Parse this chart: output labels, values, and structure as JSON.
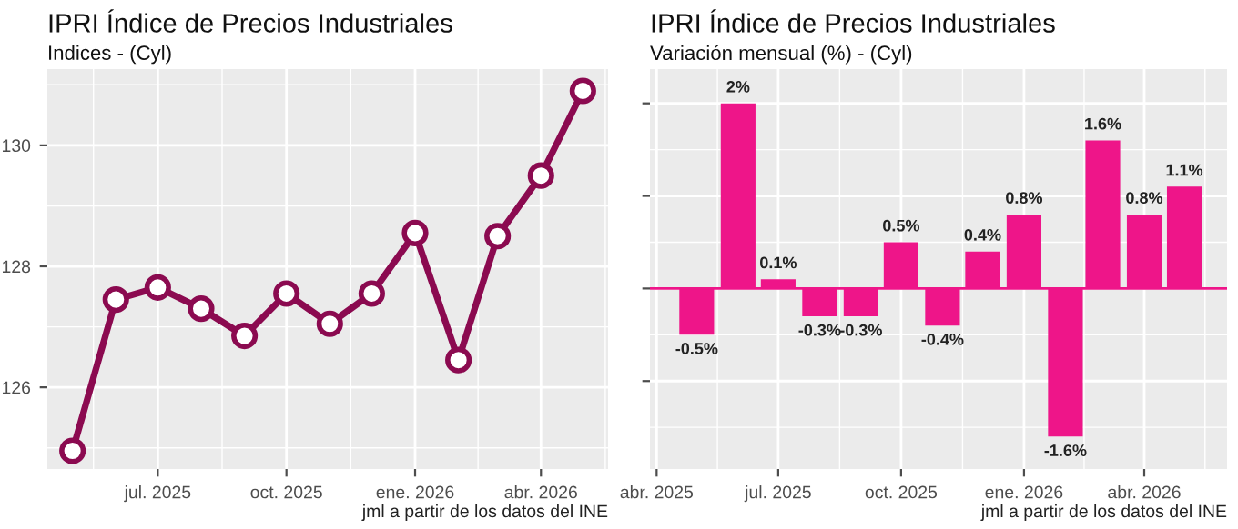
{
  "chart_data": [
    {
      "type": "line",
      "title": "IPRI Índice de Precios Industriales",
      "subtitle": "Indices - (Cyl)",
      "annotations": [
        "jml a partir de los datos del INE"
      ],
      "x": [
        "2025-05",
        "2025-06",
        "2025-07",
        "2025-08",
        "2025-09",
        "2025-10",
        "2025-11",
        "2025-12",
        "2026-01",
        "2026-02",
        "2026-03",
        "2026-04",
        "2026-05"
      ],
      "series": [
        {
          "color": "#8b0a50",
          "values": [
            124.95,
            127.45,
            127.65,
            127.3,
            126.85,
            127.55,
            127.05,
            127.55,
            128.55,
            126.45,
            128.5,
            129.5,
            130.9
          ]
        }
      ],
      "marker": "circle",
      "line_style": "solid",
      "grid": true,
      "xlim": [
        "2025-04-13",
        "2026-05-19"
      ],
      "ylim": [
        124.65,
        131.26
      ],
      "xticks": [
        {
          "value": "2025-07",
          "label": "jul. 2025"
        },
        {
          "value": "2025-10",
          "label": "oct. 2025"
        },
        {
          "value": "2026-01",
          "label": "ene. 2026"
        },
        {
          "value": "2026-04",
          "label": "abr. 2026"
        }
      ],
      "yticks": [
        126,
        128,
        130
      ]
    },
    {
      "type": "bar",
      "title": "IPRI Índice de Precios Industriales",
      "subtitle": "Variación mensual (%) - (Cyl)",
      "annotations": [
        "jml a partir de los datos del INE"
      ],
      "x": [
        "2025-05",
        "2025-06",
        "2025-07",
        "2025-08",
        "2025-09",
        "2025-10",
        "2025-11",
        "2025-12",
        "2026-01",
        "2026-02",
        "2026-03",
        "2026-04",
        "2026-05"
      ],
      "series": [
        {
          "color": "#ee1589",
          "values": [
            -0.5,
            2,
            0.1,
            -0.3,
            -0.3,
            0.5,
            -0.4,
            0.4,
            0.8,
            -1.6,
            1.6,
            0.8,
            1.1
          ],
          "value_labels": [
            "-0.5%",
            "2%",
            "0.1%",
            "-0.3%",
            "-0.3%",
            "0.5%",
            "-0.4%",
            "0.4%",
            "0.8%",
            "-1.6%",
            "1.6%",
            "0.8%",
            "1.1%"
          ]
        }
      ],
      "grid": true,
      "tick_labels": "x",
      "ref_lines": [
        {
          "axis": "y",
          "value": 0,
          "color": "#ee1589"
        }
      ],
      "xlim": [
        "2025-03-27",
        "2026-06-02"
      ],
      "ylim": [
        -1.95,
        2.37
      ],
      "xticks": [
        {
          "value": "2025-04",
          "label": "abr. 2025"
        },
        {
          "value": "2025-07",
          "label": "jul. 2025"
        },
        {
          "value": "2025-10",
          "label": "oct. 2025"
        },
        {
          "value": "2026-01",
          "label": "ene. 2026"
        },
        {
          "value": "2026-04",
          "label": "abr. 2026"
        }
      ],
      "yticks": [
        {
          "value": -1,
          "label": null
        },
        {
          "value": 0,
          "label": null
        },
        {
          "value": 1,
          "label": null
        },
        {
          "value": 2,
          "label": null
        }
      ]
    }
  ]
}
